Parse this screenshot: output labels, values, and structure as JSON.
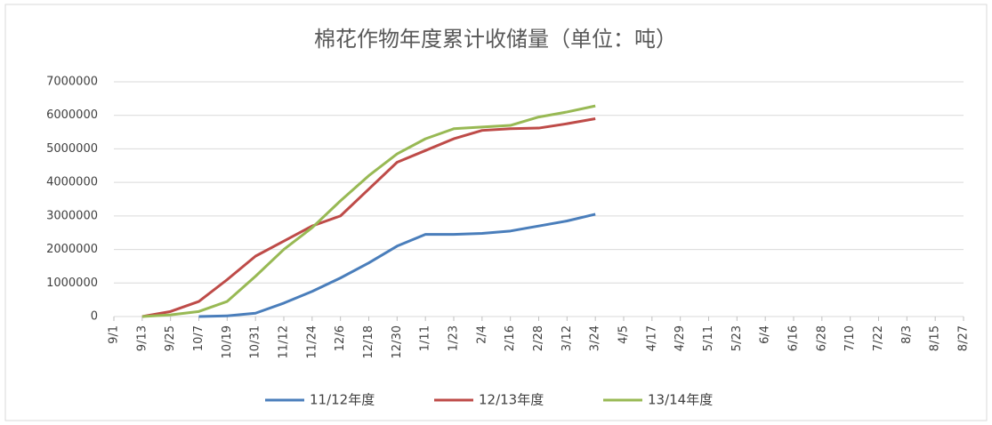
{
  "chart_data": {
    "type": "line",
    "title": "棉花作物年度累计收储量（单位：吨）",
    "categories": [
      "9/1",
      "9/13",
      "9/25",
      "10/7",
      "10/19",
      "10/31",
      "11/12",
      "11/24",
      "12/6",
      "12/18",
      "12/30",
      "1/11",
      "1/23",
      "2/4",
      "2/16",
      "2/28",
      "3/12",
      "3/24",
      "4/5",
      "4/17",
      "4/29",
      "5/11",
      "5/23",
      "6/4",
      "6/16",
      "6/28",
      "7/10",
      "7/22",
      "8/3",
      "8/15",
      "8/27"
    ],
    "series": [
      {
        "name": "11/12年度",
        "color": "#4a7ebb",
        "values": [
          null,
          null,
          null,
          0,
          20000,
          100000,
          400000,
          750000,
          1150000,
          1600000,
          2100000,
          2450000,
          2450000,
          2480000,
          2550000,
          2700000,
          2850000,
          3050000,
          null,
          null,
          null,
          null,
          null,
          null,
          null,
          null,
          null,
          null,
          null,
          null,
          null
        ]
      },
      {
        "name": "12/13年度",
        "color": "#be4b48",
        "values": [
          null,
          0,
          150000,
          450000,
          1100000,
          1800000,
          2250000,
          2700000,
          3000000,
          3800000,
          4600000,
          4950000,
          5300000,
          5550000,
          5600000,
          5620000,
          5750000,
          5900000,
          null,
          null,
          null,
          null,
          null,
          null,
          null,
          null,
          null,
          null,
          null,
          null,
          null
        ]
      },
      {
        "name": "13/14年度",
        "color": "#98b954",
        "values": [
          null,
          0,
          50000,
          150000,
          450000,
          1200000,
          2000000,
          2650000,
          3450000,
          4200000,
          4850000,
          5300000,
          5600000,
          5650000,
          5700000,
          5950000,
          6100000,
          6280000,
          null,
          null,
          null,
          null,
          null,
          null,
          null,
          null,
          null,
          null,
          null,
          null,
          null
        ]
      }
    ],
    "ylim": [
      0,
      7000000
    ],
    "yticks": [
      0,
      1000000,
      2000000,
      3000000,
      4000000,
      5000000,
      6000000,
      7000000
    ],
    "grid": true,
    "legend": "bottom"
  }
}
